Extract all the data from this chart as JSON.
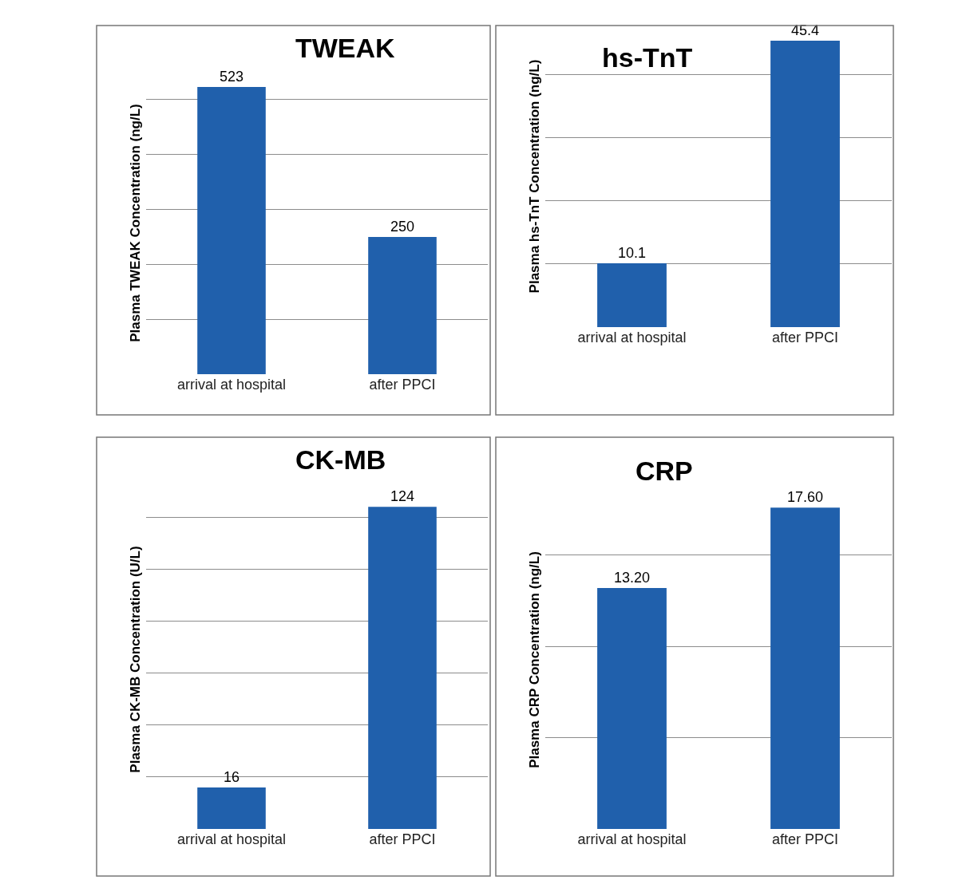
{
  "chart_data": [
    {
      "type": "bar",
      "title": "TWEAK",
      "ylabel": "Plasma TWEAK Concentration (ng/L)",
      "categories": [
        "arrival at hospital",
        "after PPCI"
      ],
      "values": [
        523,
        250
      ],
      "value_labels": [
        "523",
        "250"
      ],
      "color": "#2060ac",
      "grid": "y",
      "tick_labels": "x"
    },
    {
      "type": "bar",
      "title": "hs-TnT",
      "ylabel": "Plasma hs-TnT Concentration (ng/L)",
      "categories": [
        "arrival at hospital",
        "after PPCI"
      ],
      "values": [
        10.1,
        45.4
      ],
      "value_labels": [
        "10.1",
        "45.4"
      ],
      "color": "#2060ac",
      "grid": "y",
      "tick_labels": "x"
    },
    {
      "type": "bar",
      "title": "CK-MB",
      "ylabel": "Plasma CK-MB Concentration (U/L)",
      "categories": [
        "arrival at hospital",
        "after PPCI"
      ],
      "values": [
        16,
        124
      ],
      "value_labels": [
        "16",
        "124"
      ],
      "color": "#2060ac",
      "grid": "y",
      "tick_labels": "x"
    },
    {
      "type": "bar",
      "title": "CRP",
      "ylabel": "Plasma CRP Concentration (ng/L)",
      "categories": [
        "arrival at hospital",
        "after PPCI"
      ],
      "values": [
        13.2,
        17.6
      ],
      "value_labels": [
        "13.20",
        "17.60"
      ],
      "color": "#2060ac",
      "grid": "y",
      "tick_labels": "x"
    }
  ]
}
